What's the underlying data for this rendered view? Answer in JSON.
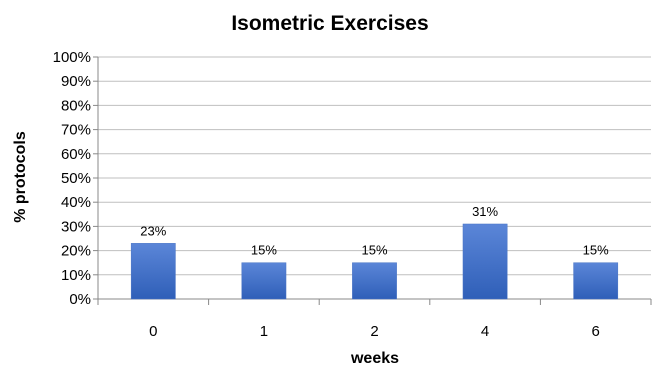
{
  "chart_data": {
    "type": "bar",
    "title": "Isometric Exercises",
    "xlabel": "weeks",
    "ylabel": "% protocols",
    "categories": [
      "0",
      "1",
      "2",
      "4",
      "6"
    ],
    "values": [
      23,
      15,
      15,
      31,
      15
    ],
    "value_labels": [
      "23%",
      "15%",
      "15%",
      "31%",
      "15%"
    ],
    "ylim": [
      0,
      100
    ],
    "y_ticks": [
      0,
      10,
      20,
      30,
      40,
      50,
      60,
      70,
      80,
      90,
      100
    ],
    "y_tick_labels": [
      "0%",
      "10%",
      "20%",
      "30%",
      "40%",
      "50%",
      "60%",
      "70%",
      "80%",
      "90%",
      "100%"
    ],
    "grid": true,
    "legend": "none",
    "colors": {
      "bar_top": "#5b86d8",
      "bar_bottom": "#2f5fb8",
      "grid": "#bfbfbf",
      "axis": "#888888"
    }
  }
}
